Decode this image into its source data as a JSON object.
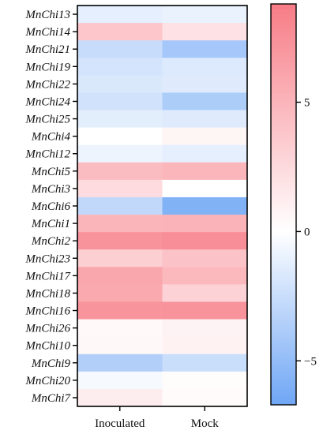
{
  "chart_data": {
    "type": "heatmap",
    "rows": [
      "MnChi13",
      "MnChi14",
      "MnChi21",
      "MnChi19",
      "MnChi22",
      "MnChi24",
      "MnChi25",
      "MnChi4",
      "MnChi12",
      "MnChi5",
      "MnChi3",
      "MnChi6",
      "MnChi1",
      "MnChi2",
      "MnChi23",
      "MnChi17",
      "MnChi18",
      "MnChi16",
      "MnChi26",
      "MnChi10",
      "MnChi9",
      "MnChi20",
      "MnChi7"
    ],
    "columns": [
      "Inoculated",
      "Mock"
    ],
    "values": [
      [
        -1.2,
        -1.0
      ],
      [
        3.8,
        2.0
      ],
      [
        -2.6,
        -4.2
      ],
      [
        -2.0,
        -1.6
      ],
      [
        -1.7,
        -1.5
      ],
      [
        -2.2,
        -3.8
      ],
      [
        -1.3,
        -1.5
      ],
      [
        0.0,
        0.7
      ],
      [
        -0.8,
        -1.2
      ],
      [
        4.5,
        4.9
      ],
      [
        2.4,
        0.0
      ],
      [
        -2.9,
        -5.8
      ],
      [
        5.0,
        5.1
      ],
      [
        7.3,
        7.6
      ],
      [
        3.2,
        4.0
      ],
      [
        6.0,
        4.7
      ],
      [
        5.8,
        3.0
      ],
      [
        7.2,
        7.3
      ],
      [
        0.4,
        0.8
      ],
      [
        0.5,
        0.9
      ],
      [
        -3.6,
        -2.5
      ],
      [
        -0.4,
        0.2
      ],
      [
        1.2,
        0.3
      ]
    ],
    "colorbar": {
      "min": -6.7,
      "max": 8.8,
      "ticks": [
        -5,
        0,
        5
      ],
      "tick_labels": [
        "−5",
        "0",
        "5"
      ],
      "low_color": "#6fa6f5",
      "mid_color": "#ffffff",
      "high_color": "#f77c86"
    }
  }
}
